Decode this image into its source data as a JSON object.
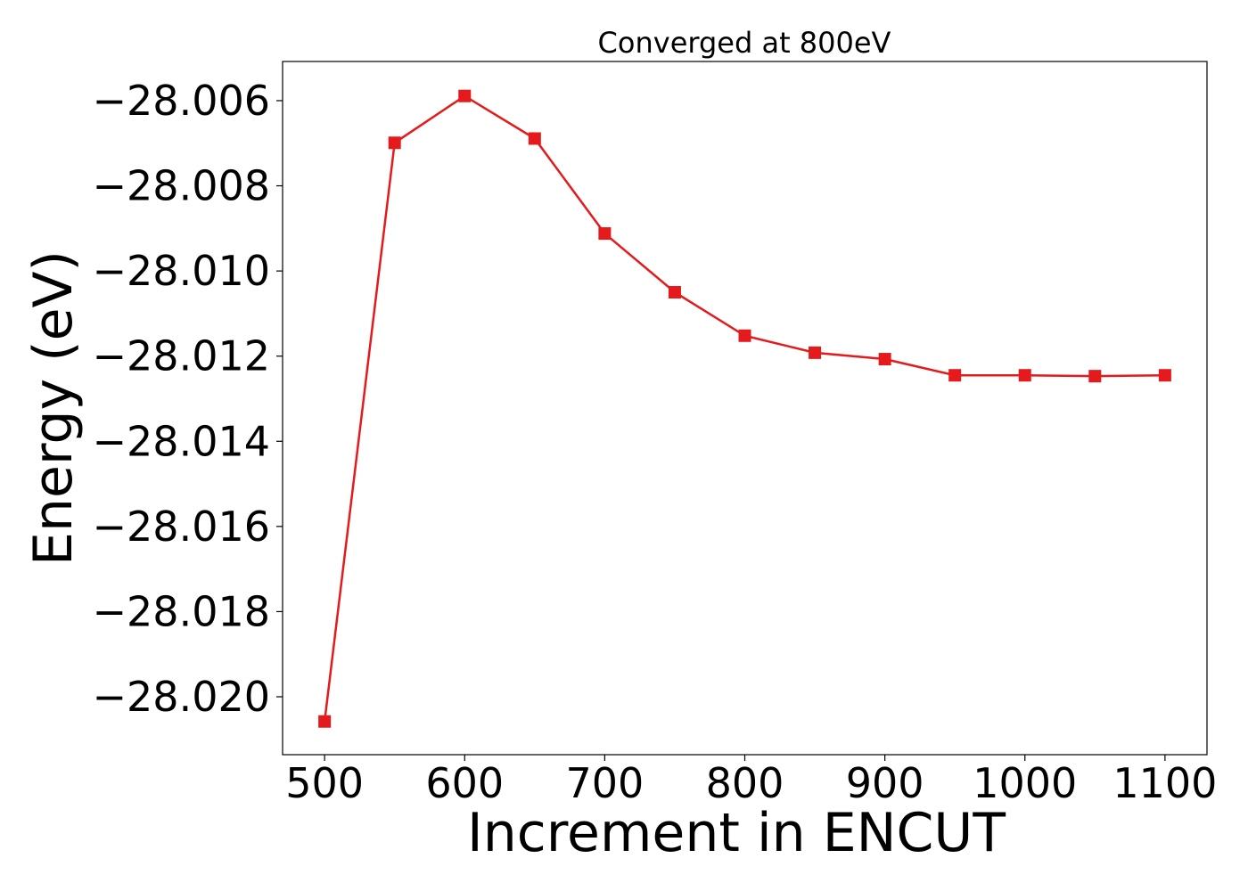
{
  "chart_data": {
    "type": "line",
    "title": "Converged at 800eV",
    "xlabel": "Increment in ENCUT",
    "ylabel": "Energy (eV)",
    "xlim": [
      470,
      1130
    ],
    "ylim": [
      -28.02136,
      -28.00508
    ],
    "xticks": [
      500,
      600,
      700,
      800,
      900,
      1000,
      1100
    ],
    "yticks": [
      -28.02,
      -28.018,
      -28.016,
      -28.014,
      -28.012,
      -28.01,
      -28.008,
      -28.006
    ],
    "xtick_labels": [
      "500",
      "600",
      "700",
      "800",
      "900",
      "1000",
      "1100"
    ],
    "ytick_labels": [
      "−28.020",
      "−28.018",
      "−28.016",
      "−28.014",
      "−28.012",
      "−28.010",
      "−28.008",
      "−28.006"
    ],
    "grid": false,
    "series": [
      {
        "color": "#e41a1c",
        "marker": "square",
        "x": [
          500,
          550,
          600,
          650,
          700,
          750,
          800,
          850,
          900,
          950,
          1000,
          1050,
          1100
        ],
        "y": [
          -28.02058,
          -28.00699,
          -28.00589,
          -28.00689,
          -28.00912,
          -28.0105,
          -28.01152,
          -28.01192,
          -28.01207,
          -28.01245,
          -28.01245,
          -28.01247,
          -28.01245
        ]
      }
    ]
  }
}
